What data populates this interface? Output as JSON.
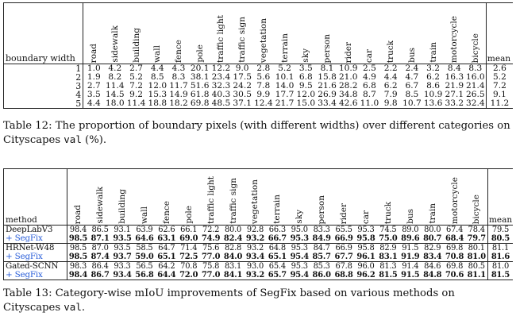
{
  "categories": [
    "road",
    "sidewalk",
    "building",
    "wall",
    "fence",
    "pole",
    "traffic light",
    "traffic sign",
    "vegetation",
    "terrain",
    "sky",
    "person",
    "rider",
    "car",
    "truck",
    "bus",
    "train",
    "motorcycle",
    "bicycle"
  ],
  "table12": {
    "first_header": "boundary width",
    "mean_header": "mean",
    "rows": [
      {
        "label": "1",
        "values": [
          "1.0",
          "4.2",
          "2.7",
          "4.4",
          "4.3",
          "20.1",
          "12.2",
          "9.0",
          "2.8",
          "5.2",
          "3.5",
          "8.1",
          "10.9",
          "2.5",
          "2.2",
          "2.4",
          "3.2",
          "8.4",
          "8.3"
        ],
        "mean": "2.6"
      },
      {
        "label": "2",
        "values": [
          "1.9",
          "8.2",
          "5.2",
          "8.5",
          "8.3",
          "38.1",
          "23.4",
          "17.5",
          "5.6",
          "10.1",
          "6.8",
          "15.8",
          "21.0",
          "4.9",
          "4.4",
          "4.7",
          "6.2",
          "16.3",
          "16.0"
        ],
        "mean": "5.2"
      },
      {
        "label": "3",
        "values": [
          "2.7",
          "11.4",
          "7.2",
          "12.0",
          "11.7",
          "51.6",
          "32.3",
          "24.2",
          "7.8",
          "14.0",
          "9.5",
          "21.6",
          "28.2",
          "6.8",
          "6.2",
          "6.7",
          "8.6",
          "21.9",
          "21.4"
        ],
        "mean": "7.2"
      },
      {
        "label": "4",
        "values": [
          "3.5",
          "14.5",
          "9.2",
          "15.3",
          "14.9",
          "61.8",
          "40.3",
          "30.5",
          "9.9",
          "17.7",
          "12.0",
          "26.9",
          "34.8",
          "8.7",
          "7.9",
          "8.5",
          "10.9",
          "27.1",
          "26.5"
        ],
        "mean": "9.1"
      },
      {
        "label": "5",
        "values": [
          "4.4",
          "18.0",
          "11.4",
          "18.8",
          "18.2",
          "69.8",
          "48.5",
          "37.1",
          "12.4",
          "21.7",
          "15.0",
          "33.4",
          "42.6",
          "11.0",
          "9.8",
          "10.7",
          "13.6",
          "33.2",
          "32.4"
        ],
        "mean": "11.2"
      }
    ],
    "caption": {
      "prefix": "Table 12: The proportion of boundary pixels (with different widths) over different categories on Cityscapes ",
      "code": "val",
      "suffix": " (%)."
    }
  },
  "table13": {
    "first_header": "method",
    "mean_header": "mean",
    "rows": [
      {
        "label": "DeepLabV3",
        "values": [
          "98.4",
          "86.5",
          "93.1",
          "63.9",
          "62.6",
          "66.1",
          "72.2",
          "80.0",
          "92.8",
          "66.3",
          "95.0",
          "83.3",
          "65.5",
          "95.3",
          "74.5",
          "89.0",
          "80.0",
          "67.4",
          "78.4"
        ],
        "mean": "79.5"
      },
      {
        "label": "+ SegFix",
        "values": [
          "98.5",
          "87.1",
          "93.5",
          "64.6",
          "63.1",
          "69.0",
          "74.9",
          "82.4",
          "93.2",
          "66.7",
          "95.3",
          "84.9",
          "66.9",
          "95.8",
          "75.0",
          "89.6",
          "80.7",
          "68.4",
          "79.7"
        ],
        "mean": "80.5"
      },
      {
        "label": "HRNet-W48",
        "values": [
          "98.5",
          "87.0",
          "93.5",
          "58.5",
          "64.7",
          "71.4",
          "75.6",
          "82.8",
          "93.2",
          "64.8",
          "95.3",
          "84.7",
          "66.9",
          "95.8",
          "82.9",
          "91.5",
          "82.9",
          "69.8",
          "80.1"
        ],
        "mean": "81.1"
      },
      {
        "label": "+ SegFix",
        "values": [
          "98.5",
          "87.4",
          "93.7",
          "59.0",
          "65.1",
          "72.5",
          "77.0",
          "84.0",
          "93.4",
          "65.1",
          "95.4",
          "85.7",
          "67.7",
          "96.1",
          "83.1",
          "91.9",
          "83.4",
          "70.8",
          "81.0"
        ],
        "mean": "81.6"
      },
      {
        "label": "Gated-SCNN",
        "values": [
          "98.3",
          "86.4",
          "93.3",
          "56.5",
          "64.2",
          "70.8",
          "75.8",
          "83.1",
          "93.0",
          "65.4",
          "95.3",
          "85.3",
          "67.8",
          "96.0",
          "81.3",
          "91.4",
          "84.6",
          "69.8",
          "80.5"
        ],
        "mean": "81.0"
      },
      {
        "label": "+ SegFix",
        "values": [
          "98.4",
          "86.7",
          "93.4",
          "56.8",
          "64.4",
          "72.0",
          "77.0",
          "84.1",
          "93.2",
          "65.7",
          "95.4",
          "86.0",
          "68.8",
          "96.2",
          "81.5",
          "91.5",
          "84.8",
          "70.6",
          "81.1"
        ],
        "mean": "81.5"
      }
    ],
    "caption": {
      "prefix": "Table 13: Category-wise mIoU improvements of SegFix based on various methods on Cityscapes ",
      "code": "val",
      "suffix": "."
    }
  }
}
